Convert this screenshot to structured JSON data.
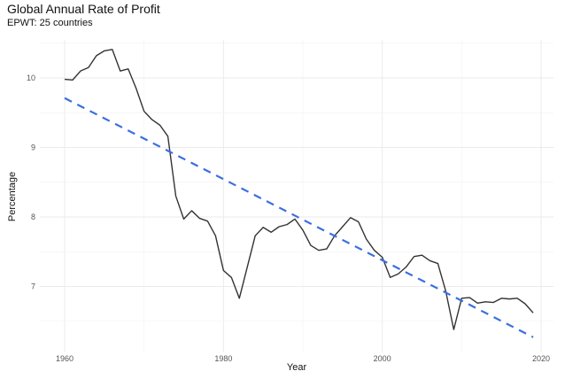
{
  "chart_data": {
    "type": "line",
    "title": "Global Annual Rate of Profit",
    "subtitle": "EPWT: 25 countries",
    "xlabel": "Year",
    "ylabel": "Percentage",
    "xlim": [
      1957,
      2022
    ],
    "ylim": [
      6.2,
      10.55
    ],
    "x_ticks": [
      1960,
      1980,
      2000,
      2020
    ],
    "y_ticks": [
      7,
      8,
      9,
      10
    ],
    "grid": true,
    "series": [
      {
        "style": "solid",
        "color": "#333333",
        "x": [
          1960,
          1961,
          1962,
          1963,
          1964,
          1965,
          1966,
          1967,
          1968,
          1969,
          1970,
          1971,
          1972,
          1973,
          1974,
          1975,
          1976,
          1977,
          1978,
          1979,
          1980,
          1981,
          1982,
          1983,
          1984,
          1985,
          1986,
          1987,
          1988,
          1989,
          1990,
          1991,
          1992,
          1993,
          1994,
          1995,
          1996,
          1997,
          1998,
          1999,
          2000,
          2001,
          2002,
          2003,
          2004,
          2005,
          2006,
          2007,
          2008,
          2009,
          2010,
          2011,
          2012,
          2013,
          2014,
          2015,
          2016,
          2017,
          2018,
          2019
        ],
        "y": [
          9.98,
          9.97,
          10.1,
          10.15,
          10.32,
          10.39,
          10.41,
          10.1,
          10.13,
          9.85,
          9.52,
          9.4,
          9.32,
          9.16,
          8.3,
          7.97,
          8.09,
          7.98,
          7.94,
          7.73,
          7.23,
          7.13,
          6.83,
          7.28,
          7.73,
          7.85,
          7.78,
          7.86,
          7.89,
          7.97,
          7.81,
          7.59,
          7.52,
          7.54,
          7.73,
          7.86,
          7.99,
          7.93,
          7.68,
          7.52,
          7.42,
          7.13,
          7.18,
          7.28,
          7.43,
          7.45,
          7.37,
          7.33,
          6.93,
          6.38,
          6.83,
          6.84,
          6.76,
          6.78,
          6.77,
          6.83,
          6.82,
          6.83,
          6.75,
          6.62
        ]
      },
      {
        "style": "dashed",
        "color": "#3b6fe0",
        "x": [
          1960,
          2019
        ],
        "y": [
          9.71,
          6.27
        ]
      }
    ]
  }
}
